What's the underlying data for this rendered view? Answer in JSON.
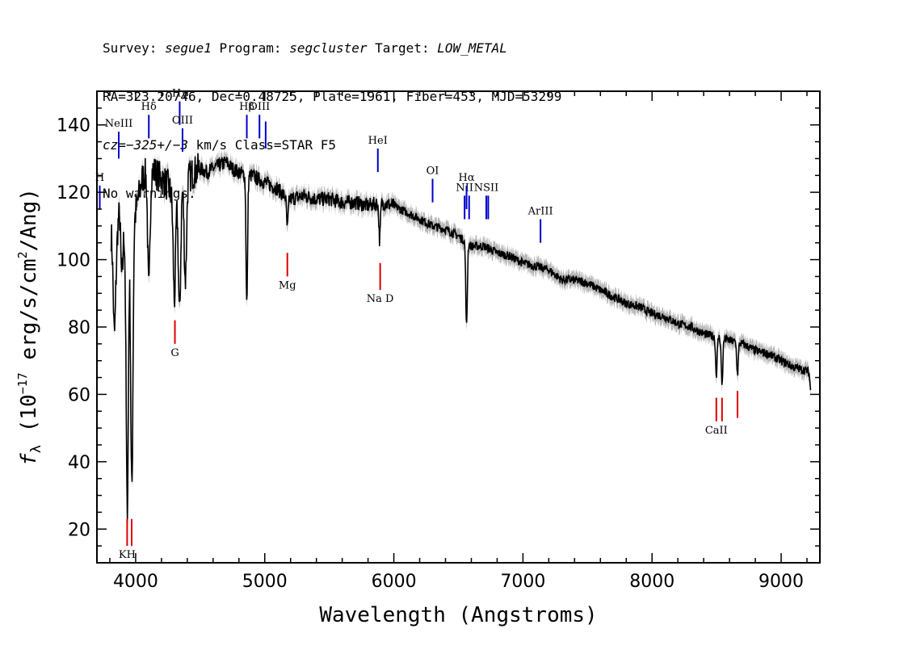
{
  "header": {
    "line1": {
      "survey_label": "Survey: ",
      "survey": "segue1",
      "program_label": " Program: ",
      "program": "segcluster",
      "target_label": " Target: ",
      "target": "LOW_METAL"
    },
    "line2": "RA=323.20746, Dec=0.48725, Plate=1961, Fiber=453, MJD=53299",
    "line3": {
      "cz": "cz=−325+/−3",
      "rest": " km/s Class=STAR F5"
    },
    "line4": "No warnings."
  },
  "chart_data": {
    "type": "line",
    "xlabel": "Wavelength (Angstroms)",
    "ylabel_parts": {
      "f": "f",
      "sub": "λ",
      "pre": " (10",
      "exp1": "−17",
      "mid": " erg/s/cm",
      "exp2": "2",
      "post": "/Ang)"
    },
    "xlim": [
      3700,
      9300
    ],
    "ylim": [
      10,
      150
    ],
    "x_ticks": [
      4000,
      5000,
      6000,
      7000,
      8000,
      9000
    ],
    "x_tick_labels": [
      "4000",
      "5000",
      "6000",
      "7000",
      "8000",
      "9000"
    ],
    "y_ticks": [
      20,
      40,
      60,
      80,
      100,
      120,
      140
    ],
    "y_tick_labels": [
      "20",
      "40",
      "60",
      "80",
      "100",
      "120",
      "140"
    ],
    "continuum": [
      [
        3810,
        108
      ],
      [
        3850,
        103
      ],
      [
        3880,
        120
      ],
      [
        3900,
        108
      ],
      [
        3950,
        117
      ],
      [
        4000,
        114
      ],
      [
        4050,
        124
      ],
      [
        4100,
        127
      ],
      [
        4150,
        126
      ],
      [
        4200,
        124
      ],
      [
        4250,
        122
      ],
      [
        4300,
        117
      ],
      [
        4350,
        122
      ],
      [
        4400,
        124
      ],
      [
        4450,
        126
      ],
      [
        4500,
        127
      ],
      [
        4550,
        126
      ],
      [
        4600,
        127
      ],
      [
        4650,
        128
      ],
      [
        4700,
        129
      ],
      [
        4750,
        127
      ],
      [
        4800,
        126
      ],
      [
        4850,
        125
      ],
      [
        4900,
        125
      ],
      [
        4950,
        124
      ],
      [
        5000,
        123
      ],
      [
        5050,
        122
      ],
      [
        5100,
        121
      ],
      [
        5150,
        119
      ],
      [
        5200,
        118
      ],
      [
        5300,
        119
      ],
      [
        5400,
        118
      ],
      [
        5500,
        118
      ],
      [
        5600,
        117
      ],
      [
        5700,
        117
      ],
      [
        5800,
        116
      ],
      [
        5900,
        117
      ],
      [
        6000,
        116
      ],
      [
        6100,
        114
      ],
      [
        6200,
        112
      ],
      [
        6300,
        110
      ],
      [
        6400,
        109
      ],
      [
        6500,
        107
      ],
      [
        6600,
        104
      ],
      [
        6700,
        104
      ],
      [
        6800,
        102
      ],
      [
        6900,
        101
      ],
      [
        7000,
        99
      ],
      [
        7100,
        98
      ],
      [
        7200,
        97
      ],
      [
        7300,
        94
      ],
      [
        7400,
        94
      ],
      [
        7500,
        93
      ],
      [
        7600,
        91
      ],
      [
        7700,
        89
      ],
      [
        7800,
        87
      ],
      [
        7900,
        86
      ],
      [
        8000,
        84
      ],
      [
        8100,
        83
      ],
      [
        8200,
        81
      ],
      [
        8300,
        80
      ],
      [
        8400,
        78
      ],
      [
        8500,
        77
      ],
      [
        8600,
        76
      ],
      [
        8700,
        75
      ],
      [
        8800,
        73
      ],
      [
        8900,
        72
      ],
      [
        9000,
        70
      ],
      [
        9100,
        68
      ],
      [
        9200,
        67
      ],
      [
        9230,
        66
      ]
    ],
    "absorption_dips": [
      [
        3835,
        78
      ],
      [
        3890,
        96
      ],
      [
        3935,
        26
      ],
      [
        3970,
        32
      ],
      [
        4102,
        91
      ],
      [
        4300,
        88
      ],
      [
        4340,
        84
      ],
      [
        4385,
        94
      ],
      [
        4861,
        87
      ],
      [
        5175,
        109
      ],
      [
        5890,
        106
      ],
      [
        6563,
        80
      ],
      [
        8498,
        66
      ],
      [
        8542,
        63
      ],
      [
        8662,
        66
      ],
      [
        9230,
        61
      ]
    ],
    "emission_lines": [
      {
        "label": "H",
        "x": 3722,
        "y1": 115,
        "y2": 122
      },
      {
        "label": "NeIII",
        "x": 3869,
        "y1": 130,
        "y2": 138
      },
      {
        "label": "Hδ",
        "x": 4102,
        "y1": 136,
        "y2": 143
      },
      {
        "label": "Hγ",
        "x": 4341,
        "y1": 140,
        "y2": 147
      },
      {
        "label": "OIII",
        "x": 4363,
        "y1": 132,
        "y2": 139
      },
      {
        "label": "Hβ",
        "x": 4861,
        "y1": 136,
        "y2": 143
      },
      {
        "label": "OIII",
        "x": 4959,
        "y1": 136,
        "y2": 143
      },
      {
        "label": "",
        "x": 5007,
        "y1": 133,
        "y2": 141
      },
      {
        "label": "HeI",
        "x": 5876,
        "y1": 126,
        "y2": 133
      },
      {
        "label": "OI",
        "x": 6300,
        "y1": 117,
        "y2": 124
      },
      {
        "label": "NII",
        "x": 6548,
        "y1": 112,
        "y2": 119
      },
      {
        "label": "Hα",
        "x": 6563,
        "y1": 115,
        "y2": 122
      },
      {
        "label": "",
        "x": 6583,
        "y1": 112,
        "y2": 119
      },
      {
        "label": "NSII",
        "x": 6716,
        "y1": 112,
        "y2": 119
      },
      {
        "label": "",
        "x": 6731,
        "y1": 112,
        "y2": 119
      },
      {
        "label": "ArIII",
        "x": 7136,
        "y1": 105,
        "y2": 112
      }
    ],
    "absorption_lines": [
      {
        "label": "KH",
        "x": 3934,
        "y1": 15,
        "y2": 23
      },
      {
        "label": "",
        "x": 3969,
        "y1": 15,
        "y2": 23
      },
      {
        "label": "G",
        "x": 4304,
        "y1": 75,
        "y2": 82
      },
      {
        "label": "Mg",
        "x": 5175,
        "y1": 95,
        "y2": 102
      },
      {
        "label": "Na D",
        "x": 5894,
        "y1": 91,
        "y2": 99
      },
      {
        "label": "CaII",
        "x": 8498,
        "y1": 52,
        "y2": 59
      },
      {
        "label": "",
        "x": 8542,
        "y1": 52,
        "y2": 59
      },
      {
        "label": "",
        "x": 8662,
        "y1": 53,
        "y2": 61
      }
    ],
    "colors": {
      "spectrum": "#000000",
      "error_band": "#b5b5b5",
      "emission": "#0000cc",
      "absorption": "#dd0000",
      "frame": "#000000"
    }
  }
}
